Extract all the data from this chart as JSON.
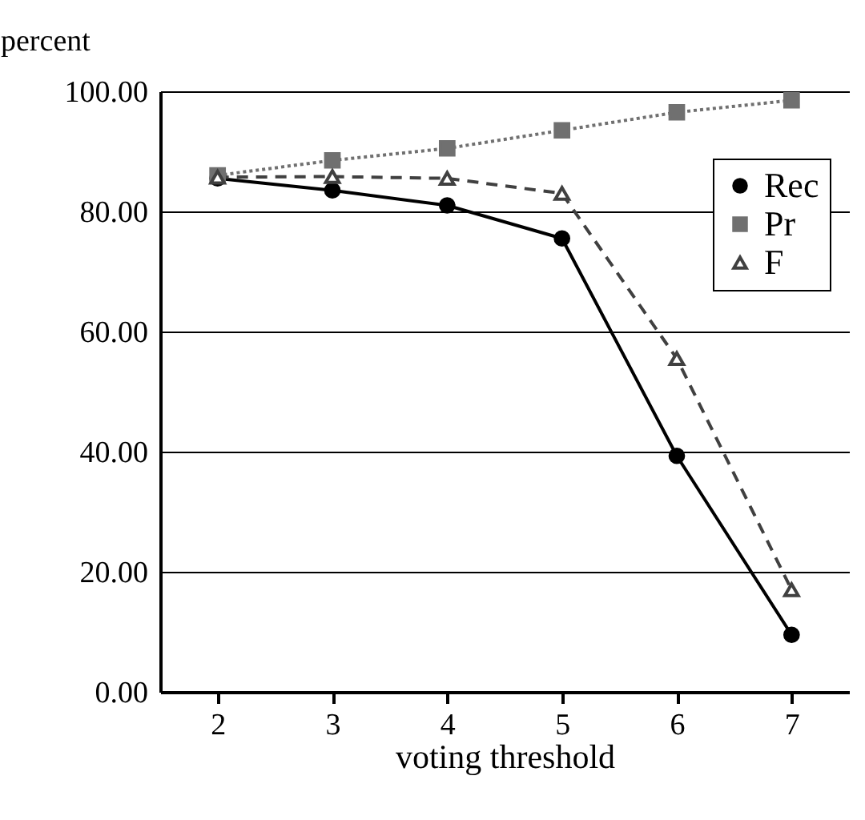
{
  "chart_data": {
    "type": "line",
    "xlabel": "voting threshold",
    "ylabel": "percent",
    "categories": [
      "2",
      "3",
      "4",
      "5",
      "6",
      "7"
    ],
    "series": [
      {
        "name": "Rec",
        "color": "#000000",
        "marker": "circle",
        "line_style": "solid",
        "values": [
          85.5,
          83.5,
          81,
          75.5,
          39.3,
          9.5
        ]
      },
      {
        "name": "Pr",
        "color": "#707070",
        "marker": "square",
        "line_style": "dotted",
        "values": [
          86,
          88.5,
          90.5,
          93.5,
          96.5,
          98.5
        ]
      },
      {
        "name": "F",
        "color": "#404040",
        "marker": "triangle",
        "line_style": "dashed",
        "values": [
          85.7,
          85.8,
          85.5,
          83,
          55.5,
          17
        ]
      }
    ],
    "ylim": [
      0,
      100
    ],
    "yticks": [
      {
        "value": 0,
        "label": "0.00"
      },
      {
        "value": 20,
        "label": "20.00"
      },
      {
        "value": 40,
        "label": "40.00"
      },
      {
        "value": 60,
        "label": "60.00"
      },
      {
        "value": 80,
        "label": "80.00"
      },
      {
        "value": 100,
        "label": "100.00"
      }
    ],
    "grid": "y",
    "legend": "top right"
  }
}
